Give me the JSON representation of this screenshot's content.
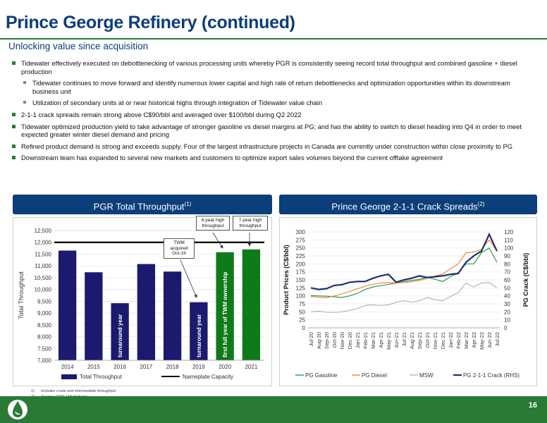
{
  "header": {
    "title": "Prince George Refinery (continued)",
    "subtitle": "Unlocking value since acquisition"
  },
  "bullets": [
    {
      "level": 1,
      "text": "Tidewater effectively executed on debottlenecking of various processing units whereby PGR is consistently seeing record total throughput and combined gasoline + diesel production"
    },
    {
      "level": 2,
      "text": "Tidewater continues to move forward and identify numerous lower capital and high rate of return debottlenecks and optimization opportunities within its downstream business unit"
    },
    {
      "level": 2,
      "text": "Utilization of secondary units at or near historical highs through integration of Tidewater value chain"
    },
    {
      "level": 1,
      "text": "2-1-1 crack spreads remain strong above C$90/bbl and averaged over $100/bbl during Q2 2022"
    },
    {
      "level": 1,
      "text": "Tidewater optimized production yield to take advantage of stronger gasoline vs diesel margins at PG; and has the ability to switch to diesel heading into Q4 in order to meet expected greater winter diesel demand and pricing"
    },
    {
      "level": 1,
      "text": "Refined product demand is strong and exceeds supply. Four of the largest infrastructure projects in Canada are currently under construction within close proximity to PG"
    },
    {
      "level": 1,
      "text": "Downstream team has expanded to several new markets and customers to optimize export sales volumes beyond the current offtake agreement"
    }
  ],
  "panels": {
    "left_title": "PGR Total Throughput",
    "left_sup": "(1)",
    "right_title": "Prince George 2-1-1 Crack Spreads",
    "right_sup": "(2)"
  },
  "callouts": {
    "tvm": "TWM acquired Oct-19",
    "six_year": "6-year high throughput",
    "seven_year": "7-year high throughput"
  },
  "chart_data": [
    {
      "type": "bar",
      "title": "PGR Total Throughput",
      "categories": [
        "2014",
        "2015",
        "2016",
        "2017",
        "2018",
        "2019",
        "2020",
        "2021"
      ],
      "series": [
        {
          "name": "Total Throughput",
          "values": [
            11650,
            10730,
            9420,
            11080,
            10760,
            9460,
            11580,
            11700
          ]
        },
        {
          "name": "Nameplate Capacity",
          "values": [
            12000,
            12000,
            12000,
            12000,
            12000,
            12000,
            12000,
            12000
          ]
        }
      ],
      "bar_labels": [
        "",
        "",
        "turnaround year",
        "",
        "",
        "turnaround year",
        "first full year of TWM ownership",
        ""
      ],
      "ylabel": "Total Throughput",
      "ylim": [
        7000,
        12500
      ],
      "yticks": [
        "7,000",
        "7,500",
        "8,000",
        "8,500",
        "9,000",
        "9,500",
        "10,000",
        "10,500",
        "11,000",
        "11,500",
        "12,000",
        "12,500"
      ],
      "colors": {
        "navy": "#1b1a6e",
        "green": "#0f7a1a",
        "line": "#000000"
      },
      "legend": "bottom"
    },
    {
      "type": "line",
      "title": "Prince George 2-1-1 Crack Spreads",
      "categories": [
        "Jul-20",
        "Aug-20",
        "Sep-20",
        "Oct-20",
        "Nov-20",
        "Dec-20",
        "Jan-21",
        "Feb-21",
        "Mar-21",
        "Apr-21",
        "May-21",
        "Jun-21",
        "Jul-21",
        "Aug-21",
        "Sep-21",
        "Oct-21",
        "Nov-21",
        "Dec-21",
        "Jan-22",
        "Feb-22",
        "Mar-22",
        "Apr-22",
        "May-22",
        "Jun-22",
        "Jul-22"
      ],
      "ylabel": "Product Prices (C$/bbl)",
      "y2label": "PG Crack (C$/bbl)",
      "ylim": [
        0,
        300
      ],
      "y2lim": [
        0,
        120
      ],
      "yticks": [
        "0",
        "25",
        "50",
        "75",
        "100",
        "125",
        "150",
        "175",
        "200",
        "225",
        "250",
        "275",
        "300"
      ],
      "y2ticks": [
        "0",
        "10",
        "20",
        "30",
        "40",
        "50",
        "60",
        "70",
        "80",
        "90",
        "100",
        "110",
        "120"
      ],
      "series": [
        {
          "name": "PG Gasoline",
          "color": "#2e9a4a",
          "axis": "left",
          "values": [
            101,
            100,
            99,
            97,
            95,
            100,
            108,
            120,
            128,
            132,
            136,
            140,
            145,
            148,
            152,
            158,
            152,
            145,
            160,
            172,
            200,
            200,
            235,
            250,
            205
          ]
        },
        {
          "name": "PG Diesel",
          "color": "#f08b3e",
          "axis": "left",
          "values": [
            98,
            96,
            94,
            100,
            106,
            114,
            122,
            130,
            136,
            140,
            142,
            140,
            142,
            144,
            148,
            155,
            162,
            168,
            185,
            200,
            235,
            237,
            245,
            275,
            240
          ]
        },
        {
          "name": "MSW",
          "color": "#b5b5b5",
          "axis": "left",
          "values": [
            50,
            52,
            49,
            48,
            50,
            55,
            60,
            70,
            72,
            70,
            72,
            80,
            85,
            80,
            85,
            95,
            88,
            85,
            98,
            110,
            140,
            128,
            140,
            142,
            125
          ]
        },
        {
          "name": "PG 2-1-1 Crack (RHS)",
          "color": "#1f2f6e",
          "axis": "right",
          "values": [
            50,
            48,
            49,
            53,
            54,
            57,
            58,
            58,
            62,
            65,
            67,
            57,
            60,
            62,
            65,
            63,
            64,
            65,
            67,
            68,
            82,
            90,
            96,
            117,
            96
          ]
        }
      ],
      "legend": "bottom"
    }
  ],
  "footnotes": [
    {
      "num": "1)",
      "text": "Includes crude and intermediate throughput"
    },
    {
      "num": "2)",
      "text": "Source: OPIS / Marketview"
    }
  ],
  "page_number": "16"
}
